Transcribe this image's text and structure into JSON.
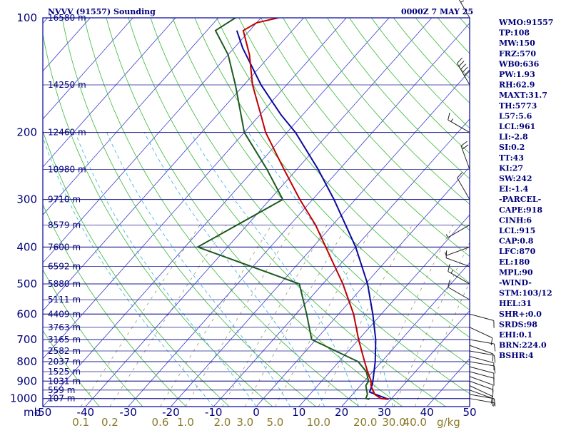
{
  "title": {
    "station": "NVVV (91557) Sounding",
    "time": "0000Z  7 MAY 25"
  },
  "indices": [
    "WMO:91557",
    "TP:108",
    "MW:150",
    "FRZ:570",
    "WB0:636",
    "PW:1.93",
    "RH:62.9",
    "MAXT:31.7",
    "TH:5773",
    "L57:5.6",
    "LCL:961",
    "LI:-2.8",
    "SI:0.2",
    "TT:43",
    "KI:27",
    "SW:242",
    "EI:-1.4",
    "-PARCEL-",
    "CAPE:918",
    "CINH:6",
    "LCL:915",
    "CAP:0.8",
    "LFC:870",
    "EL:180",
    "MPL:90",
    "-WIND-",
    "STM:103/12",
    "HEL:31",
    "SHR+:0.0",
    "SRDS:98",
    "EHI:0.1",
    "BRN:224.0",
    "BSHR:4"
  ],
  "axis": {
    "mb_label": "mb",
    "gkg_label": "g/kg"
  },
  "colors": {
    "isobar": "#1e1e8c",
    "isotherm": "#3a3ad0",
    "dry_adiabat": "#37b837",
    "moist_adiabat": "#30b0e0",
    "mixing_ratio": "#8a8a50",
    "temperature": "#c00000",
    "dewpoint": "#1d5a1d",
    "parcel": "#0a0aa0",
    "frame": "#0000a0",
    "wind": "#222222"
  },
  "chart_data": {
    "type": "skew-t log-p",
    "pressure_levels": [
      100,
      200,
      300,
      400,
      500,
      600,
      700,
      800,
      900,
      1000
    ],
    "pressure_range": [
      1050,
      100
    ],
    "temperature_ticks": [
      -50,
      -40,
      -30,
      -20,
      -10,
      0,
      10,
      20,
      30,
      40
    ],
    "temperature_range": [
      -50,
      50
    ],
    "mixing_ratio_ticks": [
      "0.1",
      "0.2",
      "0.6",
      "1.0",
      "2.0",
      "3.0",
      "5.0",
      "10.0",
      "20.0",
      "30.0",
      "40.0"
    ],
    "heights": [
      {
        "p": 100,
        "h": "16580 m"
      },
      {
        "p": 150,
        "h": "14250 m"
      },
      {
        "p": 200,
        "h": "12460 m"
      },
      {
        "p": 250,
        "h": "10980 m"
      },
      {
        "p": 300,
        "h": "9710 m"
      },
      {
        "p": 350,
        "h": "8579 m"
      },
      {
        "p": 400,
        "h": "7600 m"
      },
      {
        "p": 450,
        "h": "6592 m"
      },
      {
        "p": 500,
        "h": "5880 m"
      },
      {
        "p": 550,
        "h": "5111 m"
      },
      {
        "p": 600,
        "h": "4409 m"
      },
      {
        "p": 650,
        "h": "3763 m"
      },
      {
        "p": 700,
        "h": "3165 m"
      },
      {
        "p": 750,
        "h": "2582 m"
      },
      {
        "p": 800,
        "h": "2037 m"
      },
      {
        "p": 850,
        "h": "1525 m"
      },
      {
        "p": 900,
        "h": "1031 m"
      },
      {
        "p": 950,
        "h": "559 m"
      },
      {
        "p": 1000,
        "h": "107 m"
      }
    ],
    "temperature": [
      {
        "p": 1005,
        "t": 29.5
      },
      {
        "p": 1000,
        "t": 27.5
      },
      {
        "p": 975,
        "t": 25.2
      },
      {
        "p": 925,
        "t": 22.5
      },
      {
        "p": 900,
        "t": 21.6
      },
      {
        "p": 850,
        "t": 18.8
      },
      {
        "p": 800,
        "t": 16.0
      },
      {
        "p": 700,
        "t": 10.0
      },
      {
        "p": 600,
        "t": 3.5
      },
      {
        "p": 500,
        "t": -5.3
      },
      {
        "p": 400,
        "t": -17.0
      },
      {
        "p": 350,
        "t": -24.0
      },
      {
        "p": 300,
        "t": -33.0
      },
      {
        "p": 250,
        "t": -43.0
      },
      {
        "p": 200,
        "t": -55.0
      },
      {
        "p": 175,
        "t": -61.0
      },
      {
        "p": 150,
        "t": -68.0
      },
      {
        "p": 125,
        "t": -75.0
      },
      {
        "p": 108,
        "t": -81.5
      },
      {
        "p": 103,
        "t": -80.0
      },
      {
        "p": 100,
        "t": -76.0
      }
    ],
    "dewpoint": [
      {
        "p": 1005,
        "t": 25.0
      },
      {
        "p": 1000,
        "t": 24.0
      },
      {
        "p": 975,
        "t": 23.5
      },
      {
        "p": 925,
        "t": 21.3
      },
      {
        "p": 900,
        "t": 21.0
      },
      {
        "p": 850,
        "t": 18.5
      },
      {
        "p": 800,
        "t": 14.5
      },
      {
        "p": 700,
        "t": -1.0
      },
      {
        "p": 600,
        "t": -7.5
      },
      {
        "p": 500,
        "t": -15.5
      },
      {
        "p": 400,
        "t": -47.0
      },
      {
        "p": 300,
        "t": -37.0
      },
      {
        "p": 250,
        "t": -47.0
      },
      {
        "p": 200,
        "t": -60.0
      },
      {
        "p": 150,
        "t": -72.0
      },
      {
        "p": 125,
        "t": -80.0
      },
      {
        "p": 108,
        "t": -88.0
      },
      {
        "p": 100,
        "t": -86.0
      }
    ],
    "parcel": [
      {
        "p": 1005,
        "t": 29.5
      },
      {
        "p": 961,
        "t": 23.5
      },
      {
        "p": 915,
        "t": 22.5
      },
      {
        "p": 870,
        "t": 21.0
      },
      {
        "p": 800,
        "t": 18.5
      },
      {
        "p": 700,
        "t": 14.0
      },
      {
        "p": 600,
        "t": 8.0
      },
      {
        "p": 500,
        "t": 0.5
      },
      {
        "p": 400,
        "t": -10.0
      },
      {
        "p": 300,
        "t": -25.0
      },
      {
        "p": 250,
        "t": -35.0
      },
      {
        "p": 200,
        "t": -48.0
      },
      {
        "p": 180,
        "t": -55.0
      },
      {
        "p": 150,
        "t": -66.0
      },
      {
        "p": 120,
        "t": -78.0
      },
      {
        "p": 108,
        "t": -83.0
      }
    ],
    "wind": [
      {
        "p": 1000,
        "dir": 100,
        "spd": 5
      },
      {
        "p": 975,
        "dir": 100,
        "spd": 10
      },
      {
        "p": 950,
        "dir": 110,
        "spd": 10
      },
      {
        "p": 925,
        "dir": 115,
        "spd": 10
      },
      {
        "p": 900,
        "dir": 110,
        "spd": 10
      },
      {
        "p": 875,
        "dir": 110,
        "spd": 10
      },
      {
        "p": 850,
        "dir": 105,
        "spd": 10
      },
      {
        "p": 825,
        "dir": 105,
        "spd": 10
      },
      {
        "p": 800,
        "dir": 100,
        "spd": 10
      },
      {
        "p": 775,
        "dir": 105,
        "spd": 10
      },
      {
        "p": 750,
        "dir": 100,
        "spd": 10
      },
      {
        "p": 725,
        "dir": 110,
        "spd": 10
      },
      {
        "p": 700,
        "dir": 100,
        "spd": 10
      },
      {
        "p": 650,
        "dir": 115,
        "spd": 10
      },
      {
        "p": 600,
        "dir": 105,
        "spd": 10
      },
      {
        "p": 550,
        "dir": 300,
        "spd": 10
      },
      {
        "p": 500,
        "dir": 300,
        "spd": 15
      },
      {
        "p": 450,
        "dir": 290,
        "spd": 10
      },
      {
        "p": 400,
        "dir": 250,
        "spd": 5
      },
      {
        "p": 350,
        "dir": 240,
        "spd": 5
      },
      {
        "p": 300,
        "dir": 330,
        "spd": 10
      },
      {
        "p": 250,
        "dir": 340,
        "spd": 20
      },
      {
        "p": 200,
        "dir": 300,
        "spd": 15
      },
      {
        "p": 150,
        "dir": 330,
        "spd": 50
      },
      {
        "p": 100,
        "dir": 330,
        "spd": 25
      }
    ]
  }
}
